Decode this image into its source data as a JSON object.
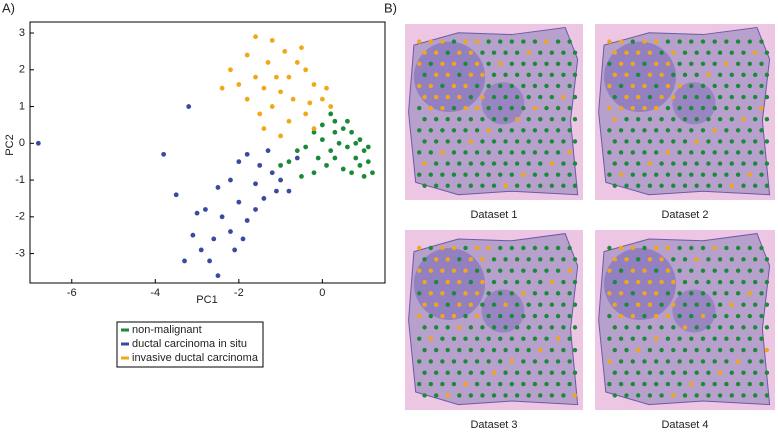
{
  "chart_data": {
    "type": "scatter",
    "panel_label": "A)",
    "xlabel": "PC1",
    "ylabel": "PC2",
    "xlim": [
      -7,
      1.5
    ],
    "ylim": [
      -3.8,
      3.3
    ],
    "xticks": [
      -6,
      -4,
      -2,
      0
    ],
    "yticks": [
      -3,
      -2,
      -1,
      0,
      1,
      2,
      3
    ],
    "legend": "bottom",
    "series": [
      {
        "name": "non-malignant",
        "color": "#1a8a3a",
        "x": [
          0.0,
          0.2,
          0.3,
          0.5,
          0.7,
          0.9,
          1.0,
          1.1,
          1.2,
          0.8,
          0.6,
          0.4,
          0.2,
          0.0,
          -0.2,
          -0.4,
          -0.6,
          -0.8,
          -0.5,
          -0.2,
          0.1,
          0.3,
          0.5,
          0.7,
          0.9,
          1.1,
          0.6,
          0.3,
          -0.1,
          -1.0,
          0.8,
          1.0
        ],
        "y": [
          0.5,
          0.8,
          0.6,
          0.4,
          0.3,
          0.1,
          -0.2,
          -0.5,
          -0.8,
          -0.4,
          -0.1,
          0.0,
          -0.2,
          0.1,
          0.3,
          -0.1,
          -0.2,
          -0.5,
          -0.9,
          -0.8,
          -0.6,
          -0.4,
          -0.7,
          -0.8,
          -0.6,
          -0.1,
          0.6,
          0.3,
          -0.4,
          -0.6,
          0.0,
          -0.9
        ]
      },
      {
        "name": "ductal carcinoma in situ",
        "color": "#3a4a9e",
        "x": [
          -6.8,
          -3.8,
          -3.2,
          -3.5,
          -3.0,
          -2.8,
          -2.5,
          -2.2,
          -2.0,
          -1.8,
          -1.5,
          -1.2,
          -1.0,
          -0.8,
          -1.6,
          -2.0,
          -2.4,
          -2.6,
          -2.9,
          -3.1,
          -2.7,
          -2.5,
          -3.3,
          -2.2,
          -1.8,
          -1.6,
          -1.4,
          -1.1,
          -2.1,
          -1.9,
          -0.6,
          -1.3
        ],
        "y": [
          0.0,
          -0.3,
          1.0,
          -1.4,
          -1.9,
          -1.8,
          -1.2,
          -1.0,
          -0.5,
          -0.3,
          -0.6,
          -0.8,
          -1.0,
          -1.3,
          -1.1,
          -1.6,
          -2.0,
          -2.6,
          -2.9,
          -2.5,
          -3.2,
          -3.6,
          -3.2,
          -2.4,
          -2.1,
          -1.8,
          -1.5,
          -1.3,
          -2.9,
          -2.6,
          -0.4,
          -0.2
        ]
      },
      {
        "name": "invasive ductal carcinoma",
        "color": "#f0a818",
        "x": [
          -1.6,
          -1.2,
          -1.8,
          -2.2,
          -2.0,
          -1.8,
          -1.5,
          -1.2,
          -1.0,
          -0.8,
          -0.6,
          -0.4,
          -0.2,
          0.0,
          0.2,
          -0.4,
          -0.8,
          -1.0,
          -1.4,
          -1.6,
          -1.3,
          -0.9,
          -0.5,
          -0.7,
          -0.2,
          -1.1,
          -0.3,
          0.1,
          -2.4,
          -1.4
        ],
        "y": [
          2.9,
          2.8,
          2.4,
          2.0,
          1.6,
          1.2,
          0.8,
          1.0,
          1.4,
          1.8,
          2.2,
          2.0,
          1.6,
          1.2,
          1.0,
          0.8,
          0.6,
          0.2,
          0.4,
          1.8,
          2.2,
          2.5,
          2.6,
          1.2,
          0.4,
          1.8,
          1.1,
          1.5,
          1.5,
          1.5
        ]
      }
    ]
  },
  "panel_b": {
    "panel_label": "B)",
    "captions": [
      "Dataset 1",
      "Dataset 2",
      "Dataset 3",
      "Dataset 4"
    ]
  }
}
